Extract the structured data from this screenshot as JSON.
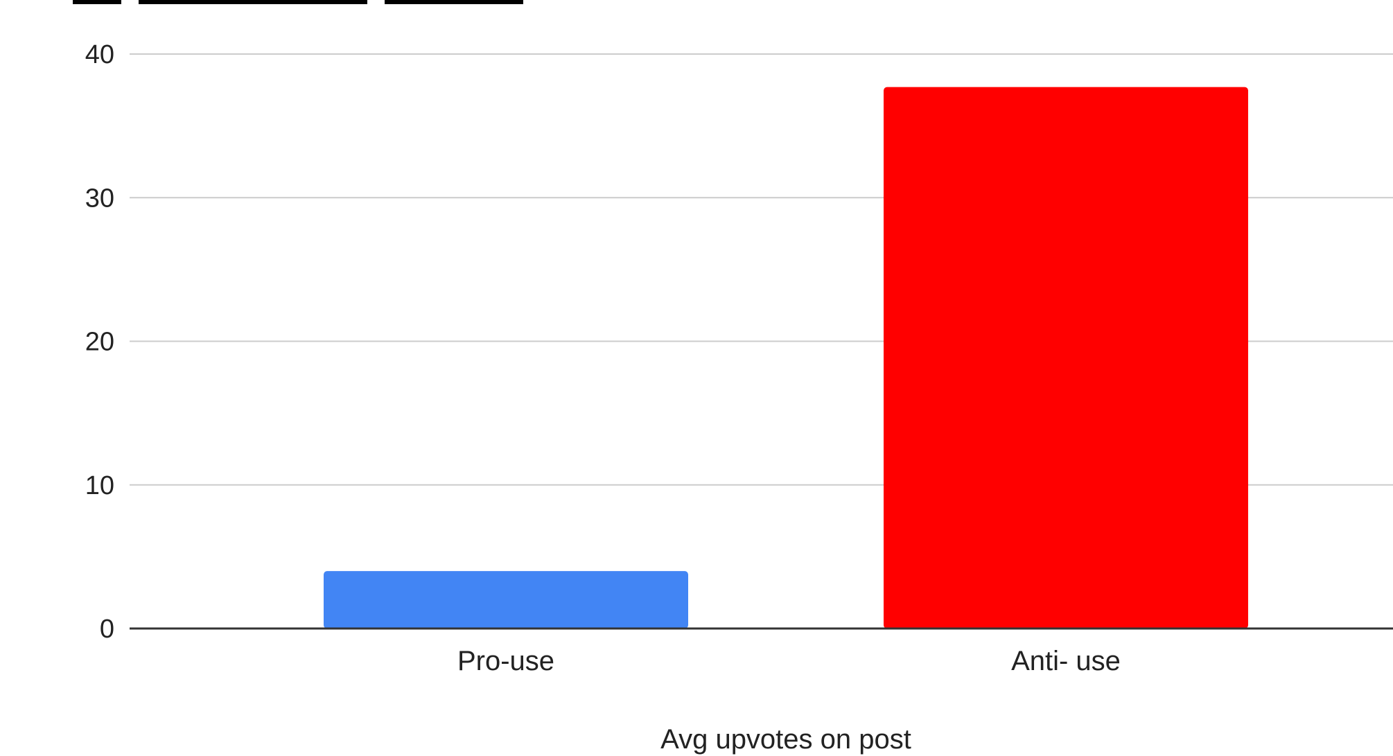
{
  "chart_data": {
    "type": "bar",
    "title": "",
    "xlabel": "Avg upvotes on post",
    "ylabel": "",
    "categories": [
      "Pro-use",
      "Anti- use"
    ],
    "values": [
      4,
      37.7
    ],
    "bar_colors": [
      "#4285f4",
      "#ff0000"
    ],
    "yticks": [
      0,
      10,
      20,
      30,
      40
    ],
    "ylim": [
      0,
      40
    ],
    "grid": true,
    "legend": "none"
  }
}
